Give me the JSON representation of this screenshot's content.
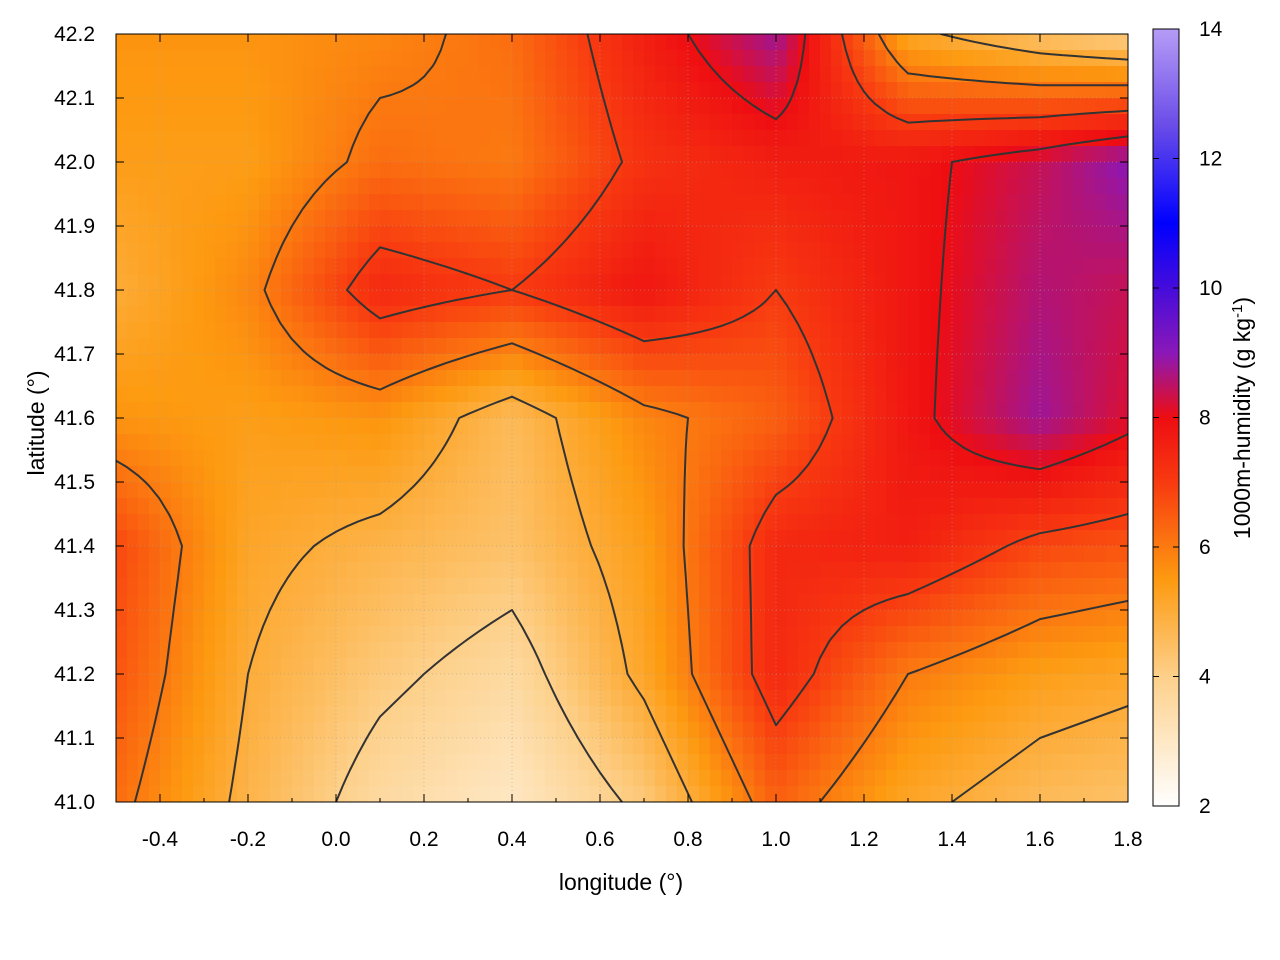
{
  "chart_data": {
    "type": "heatmap",
    "xlabel": "longitude (°)",
    "ylabel": "latitude (°)",
    "colorbar_label": "1000m-humidity (g kg",
    "colorbar_label_sup": "-1",
    "colorbar_label_close": ")",
    "xlim": [
      -0.5,
      1.8
    ],
    "ylim": [
      41.0,
      42.2
    ],
    "clim": [
      2,
      14
    ],
    "x_ticks": [
      -0.4,
      -0.2,
      0.0,
      0.2,
      0.4,
      0.6,
      0.8,
      1.0,
      1.2,
      1.4,
      1.6,
      1.8
    ],
    "x_tick_labels": [
      "-0.4",
      "-0.2",
      "0.0",
      "0.2",
      "0.4",
      "0.6",
      "0.8",
      "1.0",
      "1.2",
      "1.4",
      "1.6",
      "1.8"
    ],
    "y_ticks": [
      41.0,
      41.1,
      41.2,
      41.3,
      41.4,
      41.5,
      41.6,
      41.7,
      41.8,
      41.9,
      42.0,
      42.1,
      42.2
    ],
    "y_tick_labels": [
      "41.0",
      "41.1",
      "41.2",
      "41.3",
      "41.4",
      "41.5",
      "41.6",
      "41.7",
      "41.8",
      "41.9",
      "42.0",
      "42.1",
      "42.2"
    ],
    "colorbar_ticks": [
      2,
      4,
      6,
      8,
      10,
      12,
      14
    ],
    "colorbar_tick_labels": [
      "2",
      "4",
      "6",
      "8",
      "10",
      "12",
      "14"
    ],
    "colormap": [
      {
        "v": 2,
        "color": "#ffffff"
      },
      {
        "v": 4,
        "color": "#fdd08a"
      },
      {
        "v": 5.5,
        "color": "#fd9a10"
      },
      {
        "v": 7,
        "color": "#f83a10"
      },
      {
        "v": 8,
        "color": "#ee0d12"
      },
      {
        "v": 9,
        "color": "#8a18b8"
      },
      {
        "v": 11,
        "color": "#0000ff"
      },
      {
        "v": 12.5,
        "color": "#6a4ce8"
      },
      {
        "v": 14,
        "color": "#b69cf6"
      }
    ],
    "contour_levels": [
      4,
      5,
      6,
      7,
      8,
      9,
      10
    ],
    "grid": true,
    "field_lon": [
      -0.5,
      -0.2,
      0.1,
      0.4,
      0.7,
      1.0,
      1.3,
      1.6,
      1.8
    ],
    "field_lat": [
      41.0,
      41.2,
      41.4,
      41.6,
      41.8,
      42.0,
      42.2
    ],
    "field_values": [
      [
        6.2,
        4.8,
        3.6,
        3.0,
        4.2,
        6.4,
        5.2,
        4.6,
        4.4
      ],
      [
        6.6,
        5.0,
        4.2,
        3.6,
        5.2,
        7.4,
        6.0,
        5.4,
        5.2
      ],
      [
        6.8,
        5.2,
        4.8,
        4.4,
        5.4,
        7.4,
        7.6,
        6.8,
        6.6
      ],
      [
        5.6,
        5.4,
        5.6,
        4.6,
        5.8,
        6.4,
        7.8,
        8.8,
        8.2
      ],
      [
        5.0,
        5.8,
        7.4,
        7.0,
        7.8,
        7.0,
        7.8,
        8.6,
        8.4
      ],
      [
        5.4,
        5.4,
        6.2,
        6.0,
        7.2,
        7.6,
        7.8,
        8.4,
        9.0
      ],
      [
        5.6,
        5.6,
        5.8,
        6.2,
        7.6,
        8.8,
        5.2,
        4.4,
        4.0
      ]
    ]
  }
}
